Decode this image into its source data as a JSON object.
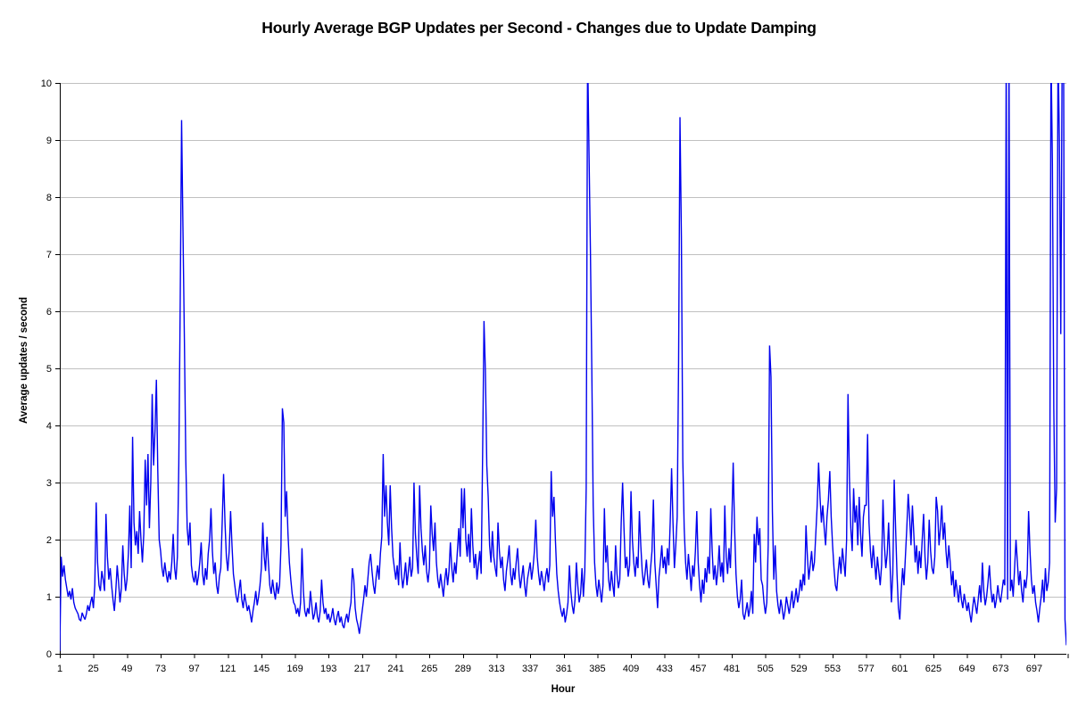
{
  "chart_data": {
    "type": "line",
    "title": "Hourly Average BGP Updates per Second - Changes due to Update Damping",
    "xlabel": "Hour",
    "ylabel": "Average updates / second",
    "legend": "none",
    "grid": "horizontal",
    "xlim": [
      1,
      720
    ],
    "ylim": [
      0,
      10
    ],
    "y_tick_step": 1,
    "x_tick_step": 24,
    "x_ticks": [
      1,
      25,
      49,
      73,
      97,
      121,
      145,
      169,
      193,
      217,
      241,
      265,
      289,
      313,
      337,
      361,
      385,
      409,
      433,
      457,
      481,
      505,
      529,
      553,
      577,
      601,
      625,
      649,
      673,
      697
    ],
    "y_ticks": [
      0,
      1,
      2,
      3,
      4,
      5,
      6,
      7,
      8,
      9,
      10
    ],
    "colors": {
      "line": "#0000ee",
      "gridline": "#c0c0c0",
      "axis": "#000000",
      "text": "#000000",
      "background": "#ffffff"
    },
    "note_values_above_ymax_are_clipped": true,
    "series": [
      {
        "x_start": 1,
        "x_step": 1,
        "values": [
          0.05,
          1.7,
          1.35,
          1.55,
          1.3,
          1.15,
          1.0,
          1.1,
          0.95,
          1.15,
          0.9,
          0.8,
          0.75,
          0.7,
          0.6,
          0.58,
          0.72,
          0.65,
          0.6,
          0.7,
          0.85,
          0.75,
          0.9,
          1.0,
          0.8,
          1.2,
          2.65,
          1.6,
          1.2,
          1.1,
          1.45,
          1.3,
          1.1,
          2.45,
          1.7,
          1.3,
          1.5,
          1.2,
          0.95,
          0.75,
          1.1,
          1.55,
          1.25,
          0.9,
          1.15,
          1.9,
          1.4,
          1.1,
          1.3,
          1.75,
          2.6,
          1.5,
          3.8,
          2.3,
          1.9,
          2.15,
          1.75,
          2.5,
          2.0,
          1.6,
          2.1,
          3.4,
          2.6,
          3.5,
          2.2,
          3.0,
          4.55,
          3.3,
          3.9,
          4.8,
          3.2,
          2.0,
          1.8,
          1.5,
          1.35,
          1.6,
          1.4,
          1.25,
          1.45,
          1.3,
          1.6,
          2.1,
          1.5,
          1.3,
          1.7,
          3.3,
          6.1,
          9.35,
          7.4,
          5.5,
          3.4,
          2.2,
          1.9,
          2.3,
          1.55,
          1.35,
          1.25,
          1.45,
          1.2,
          1.35,
          1.6,
          1.95,
          1.4,
          1.2,
          1.5,
          1.3,
          1.75,
          2.0,
          2.55,
          1.8,
          1.4,
          1.6,
          1.2,
          1.05,
          1.35,
          1.5,
          2.3,
          3.15,
          2.3,
          1.7,
          1.45,
          1.8,
          2.5,
          1.9,
          1.4,
          1.2,
          1.0,
          0.9,
          1.1,
          1.3,
          0.95,
          0.8,
          1.05,
          0.9,
          0.75,
          0.85,
          0.7,
          0.55,
          0.75,
          0.9,
          1.1,
          0.85,
          1.0,
          1.2,
          1.5,
          2.3,
          1.7,
          1.45,
          2.05,
          1.6,
          1.2,
          1.05,
          1.3,
          1.1,
          0.95,
          1.25,
          1.05,
          1.2,
          1.9,
          4.3,
          4.05,
          2.4,
          2.85,
          2.1,
          1.6,
          1.3,
          1.05,
          0.9,
          0.85,
          0.7,
          0.8,
          0.65,
          0.9,
          1.85,
          1.1,
          0.75,
          0.65,
          0.8,
          0.7,
          1.1,
          0.85,
          0.6,
          0.7,
          0.9,
          0.65,
          0.55,
          0.75,
          1.3,
          0.9,
          0.7,
          0.8,
          0.6,
          0.7,
          0.55,
          0.65,
          0.8,
          0.6,
          0.5,
          0.65,
          0.75,
          0.55,
          0.65,
          0.5,
          0.45,
          0.6,
          0.7,
          0.55,
          0.75,
          0.9,
          1.5,
          1.3,
          0.8,
          0.6,
          0.5,
          0.35,
          0.55,
          0.75,
          0.95,
          1.2,
          1.0,
          1.3,
          1.6,
          1.75,
          1.45,
          1.2,
          1.05,
          1.35,
          1.55,
          1.3,
          1.75,
          2.05,
          3.5,
          2.4,
          2.95,
          2.3,
          1.9,
          2.95,
          2.2,
          1.7,
          1.5,
          1.3,
          1.55,
          1.2,
          1.95,
          1.4,
          1.15,
          1.35,
          1.6,
          1.2,
          1.45,
          1.7,
          1.35,
          1.5,
          3.0,
          2.1,
          1.7,
          1.4,
          2.95,
          2.2,
          1.8,
          1.55,
          1.9,
          1.45,
          1.25,
          1.5,
          2.6,
          2.1,
          1.8,
          2.3,
          1.6,
          1.3,
          1.15,
          1.4,
          1.2,
          1.0,
          1.3,
          1.5,
          1.2,
          1.45,
          1.95,
          1.5,
          1.25,
          1.6,
          1.4,
          1.8,
          2.2,
          1.7,
          2.9,
          2.2,
          2.9,
          2.0,
          1.7,
          2.1,
          1.6,
          2.55,
          1.9,
          1.5,
          1.75,
          1.3,
          1.55,
          1.8,
          1.4,
          3.45,
          5.83,
          4.95,
          3.3,
          2.75,
          1.9,
          1.6,
          2.15,
          1.7,
          1.5,
          1.35,
          2.3,
          1.8,
          1.5,
          1.7,
          1.3,
          1.1,
          1.45,
          1.65,
          1.9,
          1.4,
          1.2,
          1.5,
          1.3,
          1.6,
          1.85,
          1.4,
          1.15,
          1.35,
          1.55,
          1.2,
          1.0,
          1.3,
          1.45,
          1.6,
          1.3,
          1.5,
          1.8,
          2.35,
          1.7,
          1.4,
          1.2,
          1.45,
          1.3,
          1.1,
          1.35,
          1.5,
          1.25,
          1.55,
          3.2,
          2.4,
          2.75,
          2.0,
          1.4,
          1.1,
          0.9,
          0.75,
          0.65,
          0.8,
          0.55,
          0.7,
          0.9,
          1.55,
          1.1,
          0.85,
          0.7,
          0.95,
          1.6,
          1.2,
          0.9,
          1.05,
          1.5,
          1.0,
          1.45,
          2.9,
          10.6,
          8.8,
          7.1,
          5.0,
          2.6,
          1.6,
          1.2,
          1.0,
          1.3,
          1.1,
          0.9,
          1.2,
          2.55,
          1.6,
          1.9,
          1.3,
          1.1,
          1.45,
          1.2,
          1.0,
          1.9,
          1.4,
          1.15,
          1.3,
          2.3,
          3.0,
          2.2,
          1.5,
          1.7,
          1.35,
          1.55,
          2.85,
          2.0,
          1.6,
          1.35,
          1.7,
          1.5,
          2.5,
          1.9,
          1.45,
          1.2,
          1.4,
          1.65,
          1.3,
          1.15,
          1.5,
          1.8,
          2.7,
          1.6,
          1.2,
          0.8,
          1.35,
          1.6,
          1.9,
          1.5,
          1.7,
          1.4,
          1.85,
          1.55,
          2.3,
          3.25,
          2.3,
          1.5,
          1.9,
          2.4,
          5.1,
          9.4,
          7.3,
          3.4,
          2.2,
          1.6,
          1.3,
          1.75,
          1.45,
          1.1,
          1.55,
          1.35,
          1.8,
          2.5,
          1.6,
          1.2,
          0.9,
          1.3,
          1.05,
          1.5,
          1.25,
          1.7,
          1.4,
          2.55,
          1.8,
          1.3,
          1.55,
          1.2,
          1.45,
          1.9,
          1.35,
          1.6,
          1.25,
          2.6,
          1.7,
          1.4,
          1.85,
          1.5,
          2.3,
          3.35,
          2.2,
          1.4,
          1.0,
          0.8,
          0.95,
          1.3,
          0.7,
          0.6,
          0.75,
          0.9,
          0.65,
          0.8,
          1.1,
          0.7,
          2.1,
          1.6,
          2.4,
          1.9,
          2.2,
          1.3,
          1.2,
          0.9,
          0.7,
          0.9,
          1.9,
          5.4,
          4.85,
          2.5,
          1.3,
          1.9,
          1.1,
          0.85,
          0.7,
          0.95,
          0.8,
          0.6,
          0.75,
          1.0,
          0.85,
          0.7,
          0.9,
          1.1,
          0.8,
          0.95,
          1.15,
          0.9,
          1.05,
          1.3,
          1.1,
          1.4,
          1.2,
          2.25,
          1.7,
          1.3,
          1.55,
          1.8,
          1.45,
          1.6,
          2.1,
          2.6,
          3.35,
          2.75,
          2.3,
          2.6,
          2.2,
          1.9,
          2.4,
          2.7,
          3.2,
          2.4,
          1.9,
          1.5,
          1.2,
          1.1,
          1.45,
          1.7,
          1.4,
          1.85,
          1.6,
          1.35,
          2.0,
          4.55,
          3.1,
          2.2,
          1.8,
          2.9,
          2.3,
          2.6,
          1.9,
          2.75,
          2.1,
          1.7,
          2.4,
          2.6,
          2.6,
          3.85,
          2.3,
          1.8,
          1.5,
          1.9,
          1.6,
          1.3,
          1.7,
          1.45,
          1.2,
          1.55,
          2.7,
          1.9,
          1.5,
          1.75,
          2.3,
          1.6,
          0.9,
          1.4,
          3.05,
          2.2,
          1.4,
          0.8,
          0.6,
          1.1,
          1.5,
          1.2,
          1.7,
          2.2,
          2.8,
          2.4,
          1.9,
          2.6,
          2.1,
          1.6,
          1.9,
          1.4,
          1.8,
          1.5,
          2.0,
          2.45,
          1.7,
          1.3,
          1.6,
          2.35,
          1.8,
          1.5,
          1.4,
          1.7,
          2.75,
          2.5,
          1.9,
          2.2,
          2.6,
          2.0,
          2.3,
          1.8,
          1.5,
          1.9,
          1.6,
          1.2,
          1.45,
          1.0,
          1.3,
          1.1,
          0.9,
          1.2,
          0.95,
          0.8,
          1.05,
          0.9,
          0.75,
          0.9,
          0.7,
          0.55,
          0.8,
          1.0,
          0.85,
          0.7,
          0.95,
          1.2,
          0.9,
          1.6,
          1.1,
          0.85,
          1.0,
          1.25,
          1.55,
          1.15,
          0.9,
          1.05,
          0.8,
          0.95,
          1.2,
          1.0,
          0.9,
          1.1,
          1.3,
          1.2,
          10.6,
          0.95,
          10.6,
          1.1,
          1.3,
          1.0,
          1.5,
          2.0,
          1.6,
          1.2,
          1.45,
          1.1,
          0.9,
          1.3,
          1.15,
          1.4,
          2.5,
          1.8,
          1.3,
          1.05,
          1.2,
          0.9,
          0.75,
          0.55,
          0.8,
          1.0,
          1.3,
          0.9,
          1.5,
          1.1,
          1.25,
          1.6,
          10.6,
          8.6,
          4.3,
          2.3,
          2.9,
          10.6,
          9.0,
          5.6,
          10.6,
          10.6,
          0.6,
          0.15
        ]
      }
    ]
  }
}
